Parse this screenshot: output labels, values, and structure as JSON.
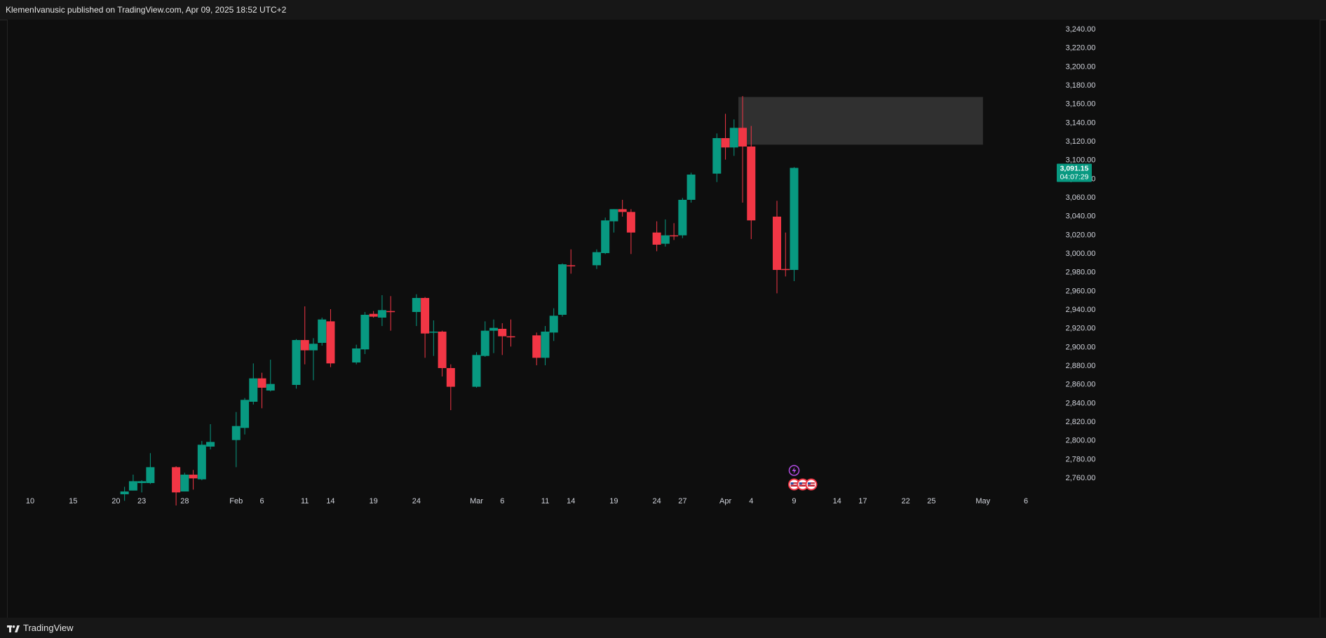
{
  "header": {
    "publish_line": "KlemenIvanusic published on TradingView.com, Apr 09, 2025 18:52 UTC+2"
  },
  "footer": {
    "brand": "TradingView"
  },
  "colors": {
    "background": "#0e0e0e",
    "up": "#089981",
    "down": "#f23645",
    "axis_text": "#d1d4dc",
    "zone_fill": "#3a3a3a",
    "event_icon": "#b04be0"
  },
  "icons": {
    "event_lightning": "lightning-bolt-icon",
    "us_flag": "us-flag-icon",
    "logo": "tradingview-logo-icon"
  },
  "chart_data": {
    "type": "candlestick",
    "symbol_hint": "",
    "y_range": [
      2745,
      3250
    ],
    "y_ticks": [
      2760,
      2780,
      2800,
      2820,
      2840,
      2860,
      2880,
      2900,
      2920,
      2940,
      2960,
      2980,
      3000,
      3020,
      3040,
      3060,
      3080,
      3100,
      3120,
      3140,
      3160,
      3180,
      3200,
      3220,
      3240
    ],
    "y_tick_labels": [
      "2,760.00",
      "2,780.00",
      "2,800.00",
      "2,820.00",
      "2,840.00",
      "2,860.00",
      "2,880.00",
      "2,900.00",
      "2,920.00",
      "2,940.00",
      "2,960.00",
      "2,980.00",
      "3,000.00",
      "3,020.00",
      "3,040.00",
      "3,060.00",
      "3,080.00",
      "3,100.00",
      "3,120.00",
      "3,140.00",
      "3,160.00",
      "3,180.00",
      "3,200.00",
      "3,220.00",
      "3,240.00"
    ],
    "x_tick_labels": [
      {
        "date": "2025-01-10",
        "label": "10"
      },
      {
        "date": "2025-01-15",
        "label": "15"
      },
      {
        "date": "2025-01-20",
        "label": "20"
      },
      {
        "date": "2025-01-23",
        "label": "23"
      },
      {
        "date": "2025-01-28",
        "label": "28"
      },
      {
        "date": "2025-02-03",
        "label": "Feb"
      },
      {
        "date": "2025-02-06",
        "label": "6"
      },
      {
        "date": "2025-02-11",
        "label": "11"
      },
      {
        "date": "2025-02-14",
        "label": "14"
      },
      {
        "date": "2025-02-19",
        "label": "19"
      },
      {
        "date": "2025-02-24",
        "label": "24"
      },
      {
        "date": "2025-03-03",
        "label": "Mar"
      },
      {
        "date": "2025-03-06",
        "label": "6"
      },
      {
        "date": "2025-03-11",
        "label": "11"
      },
      {
        "date": "2025-03-14",
        "label": "14"
      },
      {
        "date": "2025-03-19",
        "label": "19"
      },
      {
        "date": "2025-03-24",
        "label": "24"
      },
      {
        "date": "2025-03-27",
        "label": "27"
      },
      {
        "date": "2025-04-01",
        "label": "Apr"
      },
      {
        "date": "2025-04-04",
        "label": "4"
      },
      {
        "date": "2025-04-09",
        "label": "9"
      },
      {
        "date": "2025-04-14",
        "label": "14"
      },
      {
        "date": "2025-04-17",
        "label": "17"
      },
      {
        "date": "2025-04-22",
        "label": "22"
      },
      {
        "date": "2025-04-25",
        "label": "25"
      },
      {
        "date": "2025-05-01",
        "label": "May"
      },
      {
        "date": "2025-05-06",
        "label": "6"
      }
    ],
    "candles": [
      {
        "date": "2025-01-21",
        "o": 2742,
        "h": 2750,
        "l": 2735,
        "c": 2745
      },
      {
        "date": "2025-01-22",
        "o": 2746,
        "h": 2763,
        "l": 2746,
        "c": 2756
      },
      {
        "date": "2025-01-23",
        "o": 2754,
        "h": 2757,
        "l": 2744,
        "c": 2756
      },
      {
        "date": "2025-01-24",
        "o": 2754,
        "h": 2786,
        "l": 2753,
        "c": 2771
      },
      {
        "date": "2025-01-27",
        "o": 2771,
        "h": 2772,
        "l": 2730,
        "c": 2744
      },
      {
        "date": "2025-01-28",
        "o": 2745,
        "h": 2765,
        "l": 2745,
        "c": 2763
      },
      {
        "date": "2025-01-29",
        "o": 2763,
        "h": 2768,
        "l": 2747,
        "c": 2759
      },
      {
        "date": "2025-01-30",
        "o": 2758,
        "h": 2799,
        "l": 2757,
        "c": 2795
      },
      {
        "date": "2025-01-31",
        "o": 2793,
        "h": 2817,
        "l": 2790,
        "c": 2798
      },
      {
        "date": "2025-02-03",
        "o": 2800,
        "h": 2830,
        "l": 2771,
        "c": 2815
      },
      {
        "date": "2025-02-04",
        "o": 2813,
        "h": 2845,
        "l": 2806,
        "c": 2843
      },
      {
        "date": "2025-02-05",
        "o": 2841,
        "h": 2882,
        "l": 2838,
        "c": 2866
      },
      {
        "date": "2025-02-06",
        "o": 2866,
        "h": 2872,
        "l": 2834,
        "c": 2856
      },
      {
        "date": "2025-02-07",
        "o": 2853,
        "h": 2886,
        "l": 2852,
        "c": 2860
      },
      {
        "date": "2025-02-10",
        "o": 2859,
        "h": 2908,
        "l": 2855,
        "c": 2907
      },
      {
        "date": "2025-02-11",
        "o": 2907,
        "h": 2943,
        "l": 2881,
        "c": 2896
      },
      {
        "date": "2025-02-12",
        "o": 2896,
        "h": 2909,
        "l": 2864,
        "c": 2903
      },
      {
        "date": "2025-02-13",
        "o": 2904,
        "h": 2931,
        "l": 2901,
        "c": 2929
      },
      {
        "date": "2025-02-14",
        "o": 2927,
        "h": 2940,
        "l": 2878,
        "c": 2882
      },
      {
        "date": "2025-02-17",
        "o": 2883,
        "h": 2902,
        "l": 2881,
        "c": 2898
      },
      {
        "date": "2025-02-18",
        "o": 2897,
        "h": 2937,
        "l": 2892,
        "c": 2934
      },
      {
        "date": "2025-02-19",
        "o": 2935,
        "h": 2938,
        "l": 2931,
        "c": 2932
      },
      {
        "date": "2025-02-20",
        "o": 2931,
        "h": 2955,
        "l": 2922,
        "c": 2939
      },
      {
        "date": "2025-02-21",
        "o": 2938,
        "h": 2954,
        "l": 2917,
        "c": 2937
      },
      {
        "date": "2025-02-24",
        "o": 2937,
        "h": 2956,
        "l": 2922,
        "c": 2952
      },
      {
        "date": "2025-02-25",
        "o": 2952,
        "h": 2953,
        "l": 2888,
        "c": 2914
      },
      {
        "date": "2025-02-26",
        "o": 2915,
        "h": 2928,
        "l": 2890,
        "c": 2916
      },
      {
        "date": "2025-02-27",
        "o": 2916,
        "h": 2917,
        "l": 2868,
        "c": 2877
      },
      {
        "date": "2025-02-28",
        "o": 2877,
        "h": 2881,
        "l": 2832,
        "c": 2857
      },
      {
        "date": "2025-03-03",
        "o": 2857,
        "h": 2894,
        "l": 2856,
        "c": 2891
      },
      {
        "date": "2025-03-04",
        "o": 2890,
        "h": 2927,
        "l": 2889,
        "c": 2917
      },
      {
        "date": "2025-03-05",
        "o": 2917,
        "h": 2929,
        "l": 2893,
        "c": 2920
      },
      {
        "date": "2025-03-06",
        "o": 2919,
        "h": 2925,
        "l": 2891,
        "c": 2911
      },
      {
        "date": "2025-03-07",
        "o": 2911,
        "h": 2929,
        "l": 2900,
        "c": 2910
      },
      {
        "date": "2025-03-10",
        "o": 2912,
        "h": 2915,
        "l": 2880,
        "c": 2888
      },
      {
        "date": "2025-03-11",
        "o": 2888,
        "h": 2922,
        "l": 2880,
        "c": 2916
      },
      {
        "date": "2025-03-12",
        "o": 2915,
        "h": 2941,
        "l": 2906,
        "c": 2933
      },
      {
        "date": "2025-03-13",
        "o": 2934,
        "h": 2989,
        "l": 2932,
        "c": 2988
      },
      {
        "date": "2025-03-14",
        "o": 2987,
        "h": 3004,
        "l": 2978,
        "c": 2986
      },
      {
        "date": "2025-03-17",
        "o": 2987,
        "h": 3004,
        "l": 2983,
        "c": 3001
      },
      {
        "date": "2025-03-18",
        "o": 3000,
        "h": 3038,
        "l": 2999,
        "c": 3035
      },
      {
        "date": "2025-03-19",
        "o": 3034,
        "h": 3047,
        "l": 3022,
        "c": 3047
      },
      {
        "date": "2025-03-20",
        "o": 3047,
        "h": 3057,
        "l": 3039,
        "c": 3044
      },
      {
        "date": "2025-03-21",
        "o": 3044,
        "h": 3047,
        "l": 2999,
        "c": 3022
      },
      {
        "date": "2025-03-24",
        "o": 3022,
        "h": 3034,
        "l": 3002,
        "c": 3009
      },
      {
        "date": "2025-03-25",
        "o": 3010,
        "h": 3036,
        "l": 3007,
        "c": 3019
      },
      {
        "date": "2025-03-26",
        "o": 3019,
        "h": 3032,
        "l": 3014,
        "c": 3018
      },
      {
        "date": "2025-03-27",
        "o": 3019,
        "h": 3059,
        "l": 3016,
        "c": 3057
      },
      {
        "date": "2025-03-28",
        "o": 3057,
        "h": 3086,
        "l": 3054,
        "c": 3084
      },
      {
        "date": "2025-03-31",
        "o": 3085,
        "h": 3128,
        "l": 3076,
        "c": 3123
      },
      {
        "date": "2025-04-01",
        "o": 3123,
        "h": 3149,
        "l": 3100,
        "c": 3113
      },
      {
        "date": "2025-04-02",
        "o": 3113,
        "h": 3143,
        "l": 3104,
        "c": 3134
      },
      {
        "date": "2025-04-03",
        "o": 3134,
        "h": 3168,
        "l": 3054,
        "c": 3114
      },
      {
        "date": "2025-04-04",
        "o": 3114,
        "h": 3136,
        "l": 3015,
        "c": 3035
      },
      {
        "date": "2025-04-07",
        "o": 3039,
        "h": 3056,
        "l": 2957,
        "c": 2982
      },
      {
        "date": "2025-04-08",
        "o": 2983,
        "h": 3022,
        "l": 2975,
        "c": 2982
      },
      {
        "date": "2025-04-09",
        "o": 2982,
        "h": 3092,
        "l": 2970,
        "c": 3091.15
      }
    ],
    "last_price": {
      "value": 3091.15,
      "label": "3,091.15",
      "countdown": "04:07:29"
    },
    "zone": {
      "from_date": "2025-04-03",
      "to_date": "2025-05-01",
      "low": 3116,
      "high": 3167
    },
    "event_markers": [
      {
        "date": "2025-04-09",
        "type": "lightning"
      },
      {
        "date": "2025-04-09",
        "type": "us-flag"
      },
      {
        "date": "2025-04-10",
        "type": "us-flag"
      },
      {
        "date": "2025-04-11",
        "type": "us-flag"
      }
    ]
  }
}
